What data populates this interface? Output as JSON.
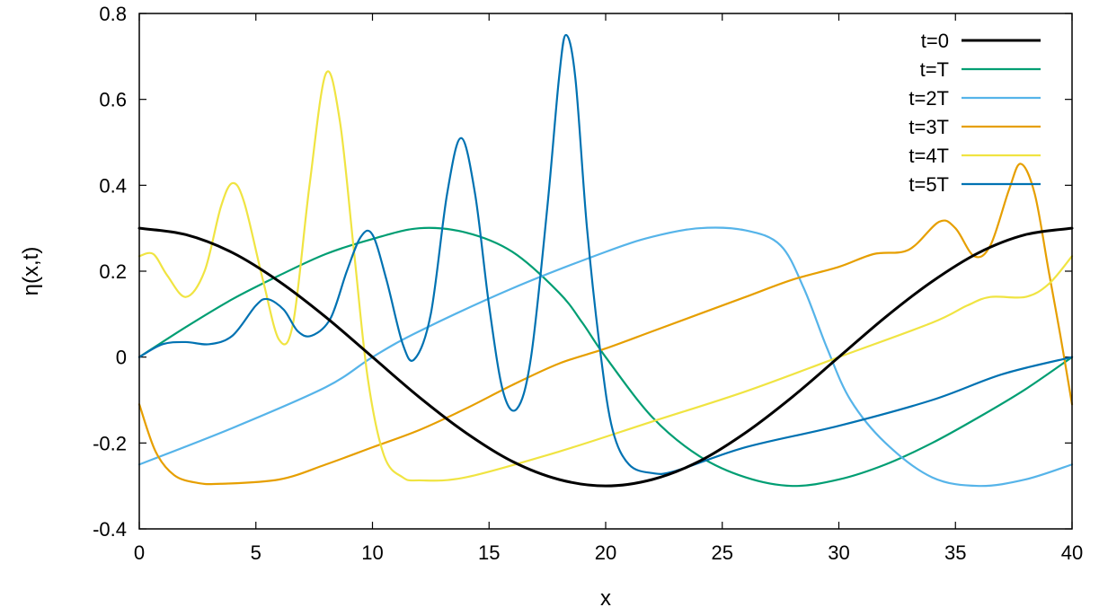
{
  "chart_data": {
    "type": "line",
    "title": "",
    "xlabel": "x",
    "ylabel": "η(x,t)",
    "xlim": [
      0,
      40
    ],
    "ylim": [
      -0.4,
      0.8
    ],
    "x_ticks": [
      "0",
      "5",
      "10",
      "15",
      "20",
      "25",
      "30",
      "35",
      "40"
    ],
    "y_ticks": [
      "-0.4",
      "-0.2",
      "0",
      "0.2",
      "0.4",
      "0.6",
      "0.8"
    ],
    "grid": false,
    "legend_position": "top-right",
    "series": [
      {
        "name": "t=0",
        "color": "#000000",
        "points": [
          [
            0,
            0.3
          ],
          [
            2,
            0.285
          ],
          [
            4,
            0.243
          ],
          [
            6,
            0.176
          ],
          [
            8,
            0.093
          ],
          [
            10,
            0.0
          ],
          [
            12,
            -0.093
          ],
          [
            14,
            -0.176
          ],
          [
            16,
            -0.243
          ],
          [
            18,
            -0.285
          ],
          [
            20,
            -0.3
          ],
          [
            22,
            -0.285
          ],
          [
            24,
            -0.243
          ],
          [
            26,
            -0.176
          ],
          [
            28,
            -0.093
          ],
          [
            30,
            0.0
          ],
          [
            32,
            0.093
          ],
          [
            34,
            0.176
          ],
          [
            36,
            0.243
          ],
          [
            38,
            0.285
          ],
          [
            40,
            0.3
          ]
        ]
      },
      {
        "name": "t=T",
        "color": "#009e73",
        "points": [
          [
            0,
            0.0
          ],
          [
            2,
            0.07
          ],
          [
            4,
            0.135
          ],
          [
            6,
            0.19
          ],
          [
            8,
            0.24
          ],
          [
            10,
            0.275
          ],
          [
            12,
            0.3
          ],
          [
            14,
            0.29
          ],
          [
            16,
            0.245
          ],
          [
            18,
            0.15
          ],
          [
            19,
            0.08
          ],
          [
            20,
            0.0
          ],
          [
            22,
            -0.14
          ],
          [
            24,
            -0.23
          ],
          [
            26,
            -0.28
          ],
          [
            28,
            -0.3
          ],
          [
            30,
            -0.285
          ],
          [
            32,
            -0.25
          ],
          [
            34,
            -0.2
          ],
          [
            36,
            -0.14
          ],
          [
            38,
            -0.075
          ],
          [
            40,
            0.0
          ]
        ]
      },
      {
        "name": "t=2T",
        "color": "#56b4e9",
        "points": [
          [
            0,
            -0.25
          ],
          [
            4,
            -0.165
          ],
          [
            8,
            -0.07
          ],
          [
            10,
            0.0
          ],
          [
            12,
            0.06
          ],
          [
            16,
            0.16
          ],
          [
            20,
            0.245
          ],
          [
            22,
            0.28
          ],
          [
            24,
            0.3
          ],
          [
            26,
            0.295
          ],
          [
            27.5,
            0.26
          ],
          [
            28.5,
            0.16
          ],
          [
            29.5,
            0.02
          ],
          [
            30.5,
            -0.1
          ],
          [
            32,
            -0.2
          ],
          [
            34,
            -0.28
          ],
          [
            36,
            -0.3
          ],
          [
            38,
            -0.285
          ],
          [
            40,
            -0.25
          ]
        ]
      },
      {
        "name": "t=3T",
        "color": "#e69f00",
        "points": [
          [
            0,
            -0.11
          ],
          [
            0.7,
            -0.22
          ],
          [
            1.5,
            -0.275
          ],
          [
            2.5,
            -0.293
          ],
          [
            3.5,
            -0.295
          ],
          [
            6,
            -0.285
          ],
          [
            8,
            -0.25
          ],
          [
            10,
            -0.21
          ],
          [
            12,
            -0.17
          ],
          [
            14,
            -0.12
          ],
          [
            16,
            -0.065
          ],
          [
            18,
            -0.015
          ],
          [
            20,
            0.02
          ],
          [
            22,
            0.06
          ],
          [
            24,
            0.1
          ],
          [
            26,
            0.14
          ],
          [
            28,
            0.18
          ],
          [
            30,
            0.21
          ],
          [
            31.5,
            0.24
          ],
          [
            33,
            0.25
          ],
          [
            34.3,
            0.315
          ],
          [
            35,
            0.3
          ],
          [
            35.8,
            0.235
          ],
          [
            36.5,
            0.26
          ],
          [
            37.3,
            0.39
          ],
          [
            37.8,
            0.45
          ],
          [
            38.4,
            0.38
          ],
          [
            39,
            0.2
          ],
          [
            39.5,
            0.05
          ],
          [
            40,
            -0.11
          ]
        ]
      },
      {
        "name": "t=4T",
        "color": "#f0e442",
        "points": [
          [
            0,
            0.235
          ],
          [
            0.6,
            0.24
          ],
          [
            1.2,
            0.19
          ],
          [
            2,
            0.14
          ],
          [
            2.8,
            0.2
          ],
          [
            3.5,
            0.35
          ],
          [
            4,
            0.405
          ],
          [
            4.5,
            0.36
          ],
          [
            5.3,
            0.18
          ],
          [
            6,
            0.04
          ],
          [
            6.6,
            0.08
          ],
          [
            7.3,
            0.4
          ],
          [
            8,
            0.66
          ],
          [
            8.6,
            0.55
          ],
          [
            9.2,
            0.25
          ],
          [
            9.8,
            -0.05
          ],
          [
            10.5,
            -0.23
          ],
          [
            11.3,
            -0.28
          ],
          [
            12,
            -0.287
          ],
          [
            14,
            -0.28
          ],
          [
            18,
            -0.22
          ],
          [
            22,
            -0.15
          ],
          [
            26,
            -0.08
          ],
          [
            30,
            0.0
          ],
          [
            34,
            0.08
          ],
          [
            35.5,
            0.12
          ],
          [
            36.5,
            0.14
          ],
          [
            38,
            0.14
          ],
          [
            39,
            0.17
          ],
          [
            40,
            0.235
          ]
        ]
      },
      {
        "name": "t=5T",
        "color": "#0072b2",
        "points": [
          [
            0,
            0.0
          ],
          [
            1,
            0.03
          ],
          [
            2,
            0.035
          ],
          [
            3,
            0.03
          ],
          [
            4,
            0.05
          ],
          [
            5,
            0.12
          ],
          [
            5.5,
            0.135
          ],
          [
            6.2,
            0.11
          ],
          [
            6.8,
            0.06
          ],
          [
            7.4,
            0.05
          ],
          [
            8.2,
            0.09
          ],
          [
            8.9,
            0.2
          ],
          [
            9.5,
            0.28
          ],
          [
            10,
            0.285
          ],
          [
            10.6,
            0.18
          ],
          [
            11.3,
            0.03
          ],
          [
            11.8,
            -0.005
          ],
          [
            12.5,
            0.1
          ],
          [
            13.2,
            0.38
          ],
          [
            13.8,
            0.51
          ],
          [
            14.4,
            0.38
          ],
          [
            15,
            0.12
          ],
          [
            15.6,
            -0.08
          ],
          [
            16.2,
            -0.12
          ],
          [
            16.8,
            0.0
          ],
          [
            17.5,
            0.35
          ],
          [
            18,
            0.65
          ],
          [
            18.3,
            0.75
          ],
          [
            18.7,
            0.65
          ],
          [
            19.2,
            0.3
          ],
          [
            19.8,
            0.0
          ],
          [
            20.3,
            -0.17
          ],
          [
            21,
            -0.25
          ],
          [
            22,
            -0.27
          ],
          [
            23,
            -0.265
          ],
          [
            26,
            -0.21
          ],
          [
            30,
            -0.16
          ],
          [
            34,
            -0.1
          ],
          [
            37,
            -0.04
          ],
          [
            40,
            0.0
          ]
        ]
      }
    ]
  }
}
